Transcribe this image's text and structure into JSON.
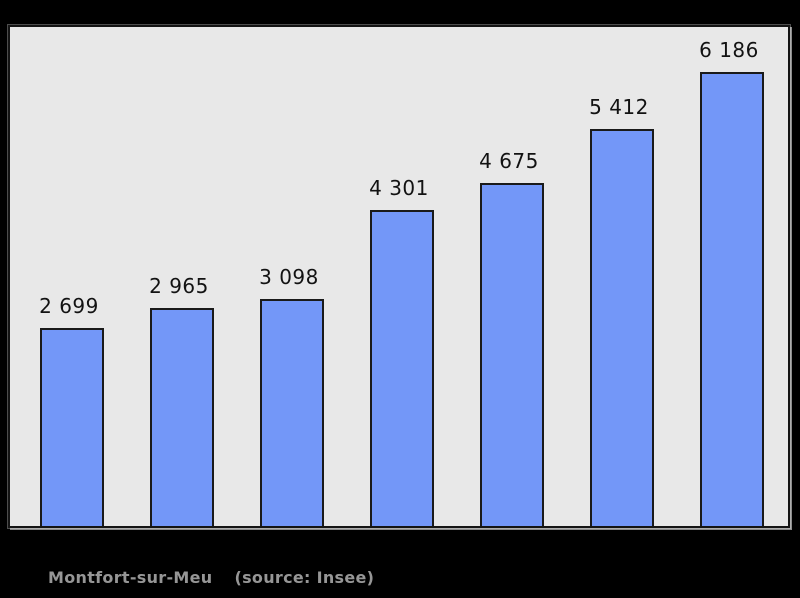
{
  "page": {
    "background_color": "#000000",
    "plot_background_color": "#e8e8e8",
    "frame_border_color": "#141414"
  },
  "chart_data": {
    "type": "bar",
    "title": "",
    "xlabel": "",
    "ylabel": "",
    "values": [
      2699,
      2965,
      3098,
      4301,
      4675,
      5412,
      6186
    ],
    "value_labels": [
      "2 699",
      "2 965",
      "3 098",
      "4 301",
      "4 675",
      "5 412",
      "6 186"
    ],
    "ylim": [
      0,
      6800
    ],
    "grid": false,
    "legend_position": "none",
    "axis_tick_labels_visible": false,
    "bar_color": "#7397f8",
    "bar_border_color": "#1a1a1a",
    "value_label_color": "#121212"
  },
  "caption": {
    "title": "Montfort-sur-Meu",
    "source": "(source: Insee)",
    "color": "#969696"
  }
}
